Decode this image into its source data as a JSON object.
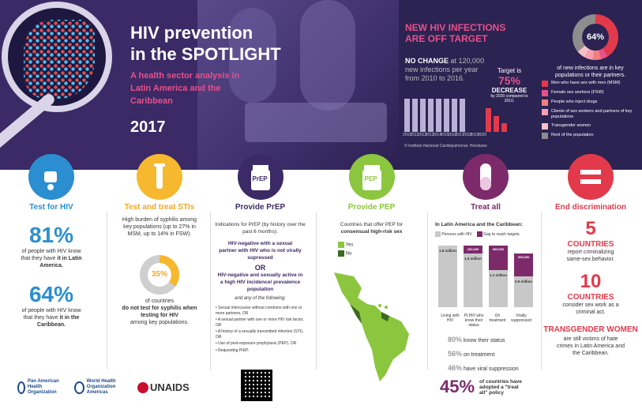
{
  "banner": {
    "title_line1": "HIV prevention",
    "title_line2": "in the SPOTLIGHT",
    "subtitle": "A health sector analysis in Latin America and the Caribbean",
    "year": "2017"
  },
  "infections": {
    "headline_1": "NEW HIV INFECTIONS",
    "headline_2": "ARE OFF TARGET",
    "nochange_bold": "NO CHANGE",
    "nochange_text": "at 120,000 new infections per year from 2010 to 2016.",
    "target_label": "Target is",
    "target_pct": "75%",
    "target_decrease": "DECREASE",
    "target_note": "by 2020 compared to 2010.",
    "years": [
      "2010",
      "2011",
      "2012",
      "2013",
      "2014",
      "2015",
      "2016",
      "2017",
      "2018",
      "2019",
      "2020"
    ],
    "source": "© Instituto Nacional Cardiopulmonar, Honduras"
  },
  "keypop": {
    "pct": "64%",
    "caption": "of new infections are in key populations or their partners.",
    "legend": [
      {
        "label": "Men who have sex with men (MSM)",
        "color": "#e23a4b"
      },
      {
        "label": "Female sex workers (FSW)",
        "color": "#e8508a"
      },
      {
        "label": "People who inject drugs",
        "color": "#f08080"
      },
      {
        "label": "Clients of sex workers and partners of key populations",
        "color": "#f4a0b0"
      },
      {
        "label": "Transgender women",
        "color": "#f8c0c8"
      },
      {
        "label": "Rest of the population",
        "color": "#8d8d8d"
      }
    ]
  },
  "test_hiv": {
    "title": "Test for HIV",
    "pct1": "81%",
    "text1a": "of people with HIV know that they have",
    "text1b": "it in Latin America.",
    "pct2": "64%",
    "text2a": "of people with HIV know that they have",
    "text2b": "it in the Caribbean."
  },
  "test_sti": {
    "title": "Test and treat STIs",
    "text": "High burden of syphilis among key populations (up to 27% in MSM, up to 14% in FSW).",
    "pct": "35%",
    "text2a": "of countries",
    "text2b": "do not test for syphilis when testing for HIV",
    "text2c": "among key populations."
  },
  "prep": {
    "title": "Provide PrEP",
    "icon_label": "PrEP",
    "intro": "Indications for PrEP (by history over the past 6 months):",
    "crit1": "HIV-negative with a sexual partner with HIV who is not virally supressed",
    "or": "OR",
    "crit2": "HIV-negative and sexually active in a high HIV incidence/ prevalence population",
    "any": "and any of the following:",
    "bullets": [
      "Sexual intercourse without condoms with one or more partners, OR",
      "A sexual partner with one or more HIV risk factor, OR",
      "A history of a sexually transmitted infection (STI), OR",
      "Use of post-exposure prophylaxis (PEP), OR",
      "Requesting PrEP."
    ]
  },
  "pep": {
    "title": "Provide PEP",
    "icon_label": "PEP",
    "text_a": "Countries that offer PEP for",
    "text_b": "consensual high-risk sex",
    "legend_yes": "Yes",
    "legend_no": "No"
  },
  "treat": {
    "title": "Treat all",
    "region": "In Latin America and the Caribbean:",
    "legend_1": "Persons with HIV",
    "legend_2": "Gap to reach targets",
    "bar_values": [
      "1.8 million",
      "1.6 million",
      "1.1 million",
      "0.9 million"
    ],
    "gap_values": [
      "200,000",
      "365,000",
      "525,000"
    ],
    "bar_labels": [
      "Living with HIV",
      "PLHIV who know their status",
      "On treatment",
      "Virally suppressed"
    ],
    "stat1_pct": "80%",
    "stat1_text": "know their status",
    "stat2_pct": "56%",
    "stat2_text": "on treatment",
    "stat3_pct": "46%",
    "stat3_text": "have viral suppression",
    "big_pct": "45%",
    "big_text": "of countries have adopted a \"treat all\" policy"
  },
  "discrim": {
    "title": "End discrimination",
    "n1": "5",
    "n1_label": "COUNTRIES",
    "n1_text": "report criminalizing same-sex behavior.",
    "n2": "10",
    "n2_label": "COUNTRIES",
    "n2_text": "consider sex work as a criminal act.",
    "tg_title": "TRANSGENDER WOMEN",
    "tg_text": "are still victims of hate crimes in Latin America and the Caribbean."
  },
  "logos": {
    "paho": "Pan American Health Organization",
    "who": "World Health Organization",
    "who_region": "Americas",
    "unaids": "UNAIDS"
  }
}
